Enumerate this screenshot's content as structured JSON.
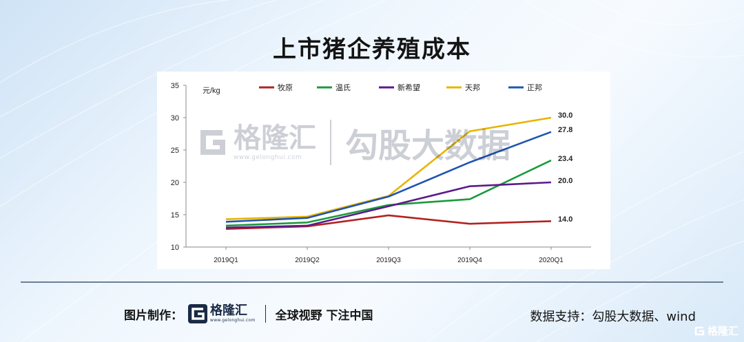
{
  "title": "上市猪企养殖成本",
  "chart_data": {
    "type": "line",
    "unit_label": "元/kg",
    "categories": [
      "2019Q1",
      "2019Q2",
      "2019Q3",
      "2019Q4",
      "2020Q1"
    ],
    "ylim": [
      10,
      35
    ],
    "yticks": [
      10,
      15,
      20,
      25,
      30,
      35
    ],
    "legend_position": "top",
    "series": [
      {
        "name": "牧原",
        "color": "#b22222",
        "values": [
          12.8,
          13.2,
          14.9,
          13.6,
          14.0
        ]
      },
      {
        "name": "温氏",
        "color": "#1a9a3a",
        "values": [
          13.3,
          13.8,
          16.5,
          17.4,
          23.4
        ]
      },
      {
        "name": "新希望",
        "color": "#5b1a8c",
        "values": [
          13.0,
          13.3,
          16.3,
          19.4,
          20.0
        ]
      },
      {
        "name": "天邦",
        "color": "#e8b400",
        "values": [
          14.3,
          14.7,
          17.9,
          27.9,
          30.0
        ]
      },
      {
        "name": "正邦",
        "color": "#1f55b0",
        "values": [
          13.9,
          14.5,
          17.8,
          23.1,
          27.8
        ]
      }
    ],
    "end_labels": [
      "30.0",
      "27.8",
      "23.4",
      "20.0",
      "14.0"
    ]
  },
  "watermark": {
    "brand": "格隆汇",
    "domain": "www.gelonghui.com",
    "source": "勾股大数据"
  },
  "footer": {
    "credit_label": "图片制作：",
    "brand": "格隆汇",
    "domain": "www.gelonghui.com",
    "slogan": "全球视野 下注中国",
    "source_text": "数据支持：勾股大数据、wind",
    "corner_brand": "格隆汇"
  }
}
